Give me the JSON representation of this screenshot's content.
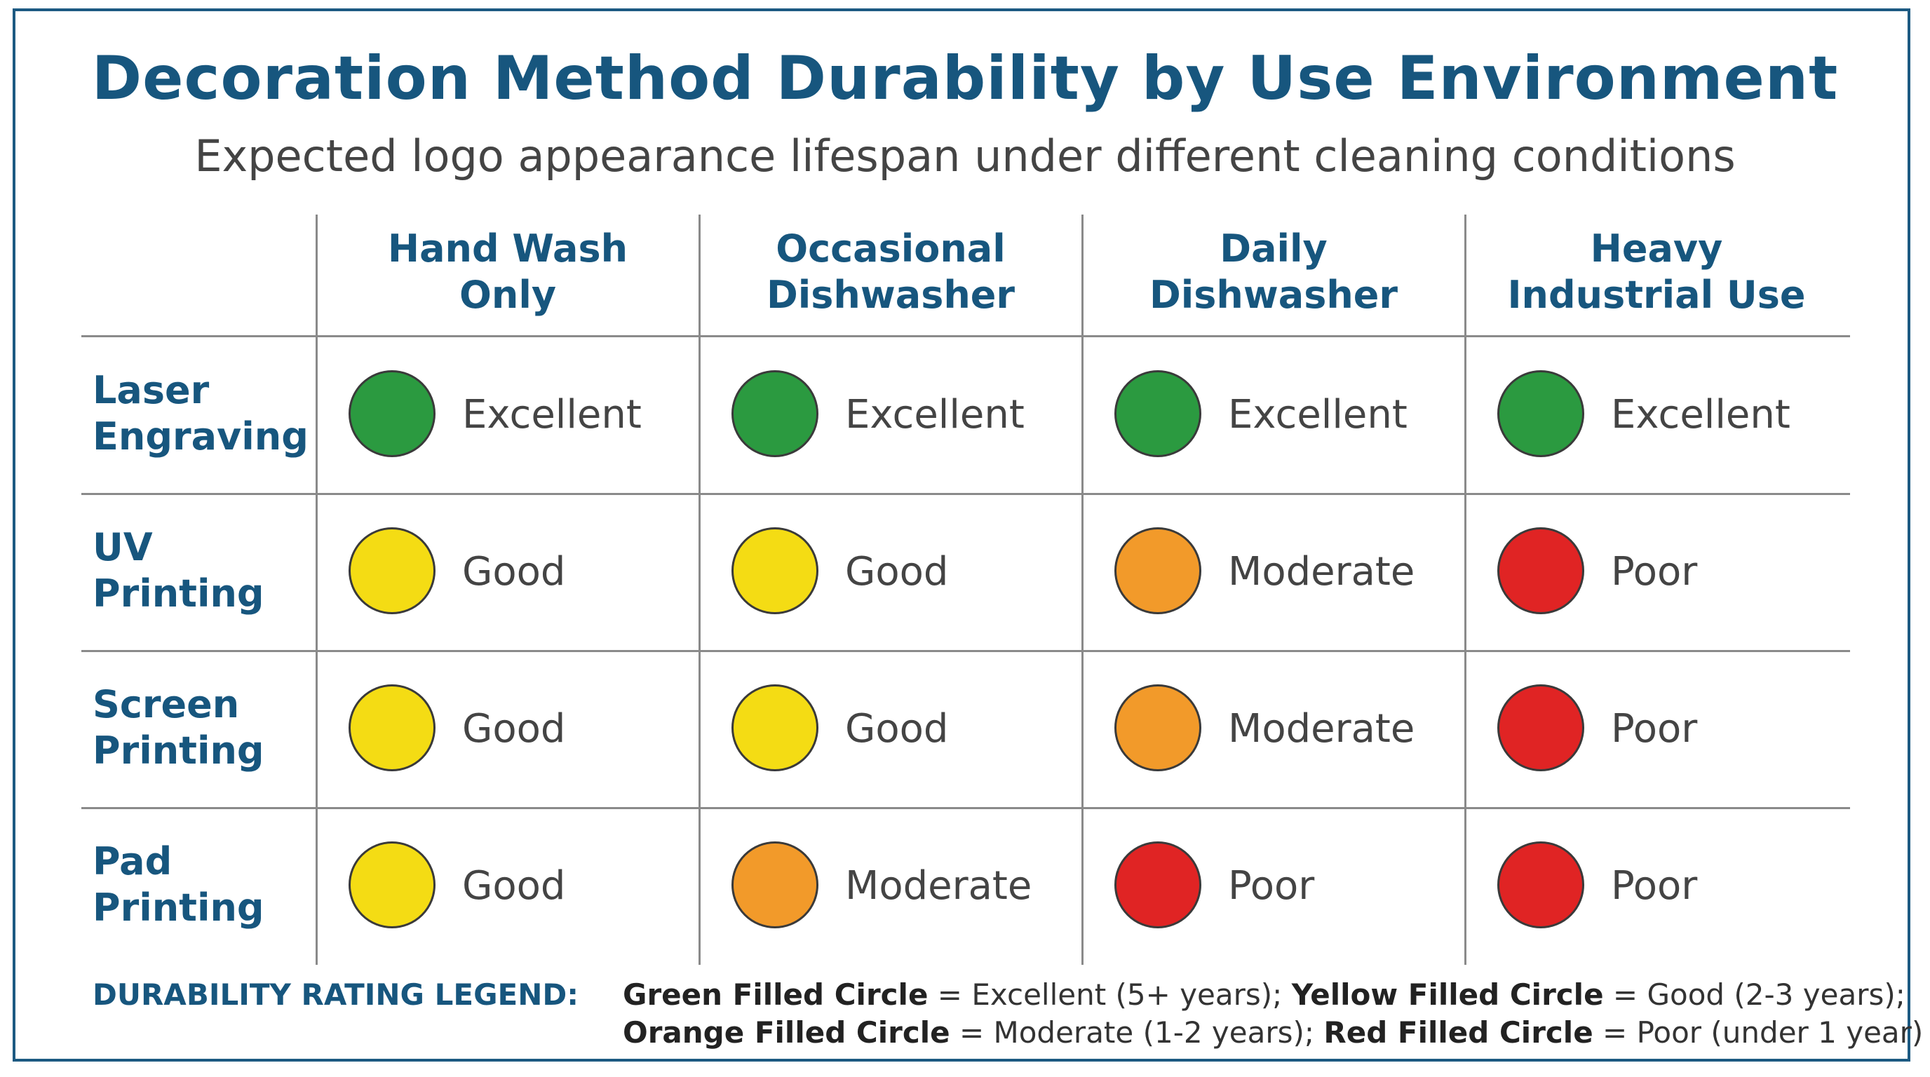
{
  "chart_data": {
    "type": "table",
    "title": "Decoration Method Durability by Use Environment",
    "subtitle": "Expected logo appearance lifespan under different cleaning conditions",
    "columns": [
      {
        "line1": "Hand Wash",
        "line2": "Only"
      },
      {
        "line1": "Occasional",
        "line2": "Dishwasher"
      },
      {
        "line1": "Daily",
        "line2": "Dishwasher"
      },
      {
        "line1": "Heavy",
        "line2": "Industrial Use"
      }
    ],
    "rows": [
      {
        "line1": "Laser",
        "line2": "Engraving",
        "ratings": [
          "Excellent",
          "Excellent",
          "Excellent",
          "Excellent"
        ]
      },
      {
        "line1": "UV",
        "line2": "Printing",
        "ratings": [
          "Good",
          "Good",
          "Moderate",
          "Poor"
        ]
      },
      {
        "line1": "Screen",
        "line2": "Printing",
        "ratings": [
          "Good",
          "Good",
          "Moderate",
          "Poor"
        ]
      },
      {
        "line1": "Pad",
        "line2": "Printing",
        "ratings": [
          "Good",
          "Moderate",
          "Poor",
          "Poor"
        ]
      }
    ],
    "rating_colors": {
      "Excellent": "#2b9a40",
      "Good": "#f4dc14",
      "Moderate": "#f29a2a",
      "Poor": "#e02424"
    },
    "legend": {
      "title": "DURABILITY RATING LEGEND:",
      "items": [
        {
          "name": "Green Filled Circle",
          "desc": " = Excellent (5+ years);"
        },
        {
          "name": "Yellow Filled Circle",
          "desc": " = Good (2-3 years);"
        },
        {
          "name": "Orange Filled Circle",
          "desc": " = Moderate (1-2 years);"
        },
        {
          "name": "Red Filled Circle",
          "desc": " = Poor (under 1 year)"
        }
      ]
    }
  }
}
